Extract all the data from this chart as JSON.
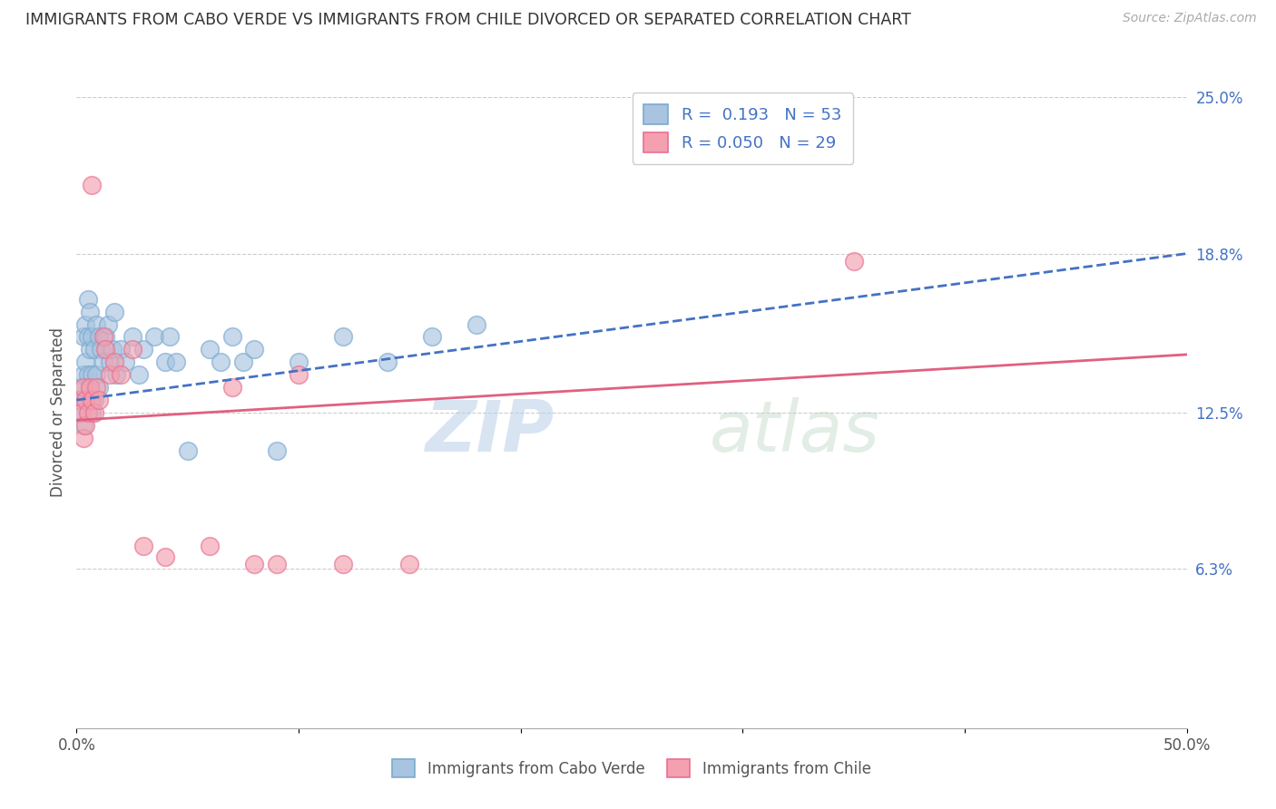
{
  "title": "IMMIGRANTS FROM CABO VERDE VS IMMIGRANTS FROM CHILE DIVORCED OR SEPARATED CORRELATION CHART",
  "source": "Source: ZipAtlas.com",
  "ylabel": "Divorced or Separated",
  "xlabel": "",
  "watermark": "ZIP",
  "watermark2": "atlas",
  "xlim": [
    0.0,
    0.5
  ],
  "ylim": [
    0.0,
    0.25
  ],
  "xticks": [
    0.0,
    0.1,
    0.2,
    0.3,
    0.4,
    0.5
  ],
  "xtick_labels": [
    "0.0%",
    "",
    "",
    "",
    "",
    "50.0%"
  ],
  "yticks_right": [
    0.0,
    0.063,
    0.125,
    0.188,
    0.25
  ],
  "ytick_right_labels": [
    "",
    "6.3%",
    "12.5%",
    "18.8%",
    "25.0%"
  ],
  "grid_color": "#cccccc",
  "cabo_verde_color": "#a8c4e0",
  "chile_color": "#f4a0b0",
  "cabo_verde_edge": "#7aaad0",
  "chile_edge": "#e87090",
  "cabo_verde_label": "Immigrants from Cabo Verde",
  "chile_label": "Immigrants from Chile",
  "cabo_verde_R": "0.193",
  "cabo_verde_N": "53",
  "chile_R": "0.050",
  "chile_N": "29",
  "cabo_verde_trend_color": "#4472c4",
  "chile_trend_color": "#e06080",
  "cabo_verde_x": [
    0.001,
    0.002,
    0.002,
    0.003,
    0.003,
    0.003,
    0.004,
    0.004,
    0.004,
    0.005,
    0.005,
    0.005,
    0.006,
    0.006,
    0.006,
    0.007,
    0.007,
    0.007,
    0.008,
    0.008,
    0.009,
    0.009,
    0.01,
    0.01,
    0.011,
    0.012,
    0.013,
    0.014,
    0.015,
    0.016,
    0.017,
    0.018,
    0.02,
    0.022,
    0.025,
    0.028,
    0.03,
    0.035,
    0.04,
    0.042,
    0.045,
    0.05,
    0.06,
    0.065,
    0.07,
    0.075,
    0.08,
    0.09,
    0.1,
    0.12,
    0.14,
    0.16,
    0.18
  ],
  "cabo_verde_y": [
    0.13,
    0.125,
    0.135,
    0.14,
    0.12,
    0.155,
    0.13,
    0.145,
    0.16,
    0.14,
    0.155,
    0.17,
    0.135,
    0.15,
    0.165,
    0.125,
    0.14,
    0.155,
    0.13,
    0.15,
    0.14,
    0.16,
    0.135,
    0.155,
    0.15,
    0.145,
    0.155,
    0.16,
    0.145,
    0.15,
    0.165,
    0.14,
    0.15,
    0.145,
    0.155,
    0.14,
    0.15,
    0.155,
    0.145,
    0.155,
    0.145,
    0.11,
    0.15,
    0.145,
    0.155,
    0.145,
    0.15,
    0.11,
    0.145,
    0.155,
    0.145,
    0.155,
    0.16
  ],
  "chile_x": [
    0.001,
    0.002,
    0.003,
    0.003,
    0.004,
    0.004,
    0.005,
    0.006,
    0.007,
    0.007,
    0.008,
    0.009,
    0.01,
    0.012,
    0.013,
    0.015,
    0.017,
    0.02,
    0.025,
    0.03,
    0.04,
    0.06,
    0.07,
    0.08,
    0.09,
    0.1,
    0.12,
    0.15,
    0.35
  ],
  "chile_y": [
    0.13,
    0.125,
    0.135,
    0.115,
    0.13,
    0.12,
    0.125,
    0.135,
    0.215,
    0.13,
    0.125,
    0.135,
    0.13,
    0.155,
    0.15,
    0.14,
    0.145,
    0.14,
    0.15,
    0.072,
    0.068,
    0.072,
    0.135,
    0.065,
    0.065,
    0.14,
    0.065,
    0.065,
    0.185
  ],
  "cabo_trend_x0": 0.0,
  "cabo_trend_x1": 0.5,
  "cabo_trend_y0": 0.13,
  "cabo_trend_y1": 0.188,
  "chile_trend_x0": 0.0,
  "chile_trend_x1": 0.5,
  "chile_trend_y0": 0.122,
  "chile_trend_y1": 0.148
}
